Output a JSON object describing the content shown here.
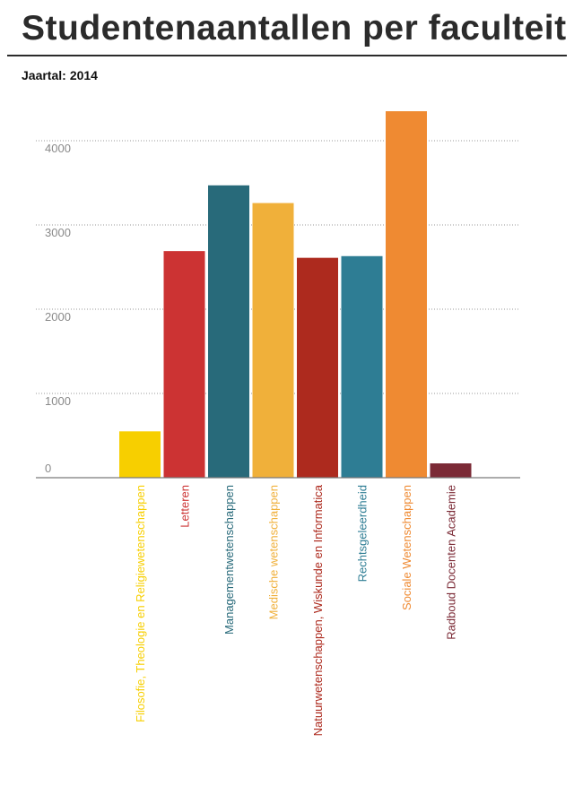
{
  "page": {
    "title": "Studentenaantallen per faculteit",
    "year_label": "Jaartal:",
    "year_value": "2014"
  },
  "chart_data": {
    "type": "bar",
    "categories": [
      "Filosofie, Theologie en Religiewetenschappen",
      "Letteren",
      "Managementwetenschappen",
      "Medische wetenschappen",
      "Natuurwetenschappen, Wiskunde en Informatica",
      "Rechtsgeleerdheid",
      "Sociale Wetenschappen",
      "Radboud Docenten Academie"
    ],
    "values": [
      550,
      2690,
      3470,
      3260,
      2610,
      2630,
      4350,
      170
    ],
    "colors": [
      "#f7cf00",
      "#cc3333",
      "#286a7a",
      "#f0b03a",
      "#ad2a1e",
      "#2e7d94",
      "#ef8a32",
      "#7b2a36"
    ],
    "yticks": [
      0,
      1000,
      2000,
      3000,
      4000
    ],
    "ylim": [
      0,
      4500
    ],
    "grid": true,
    "title": "",
    "xlabel": "",
    "ylabel": ""
  }
}
